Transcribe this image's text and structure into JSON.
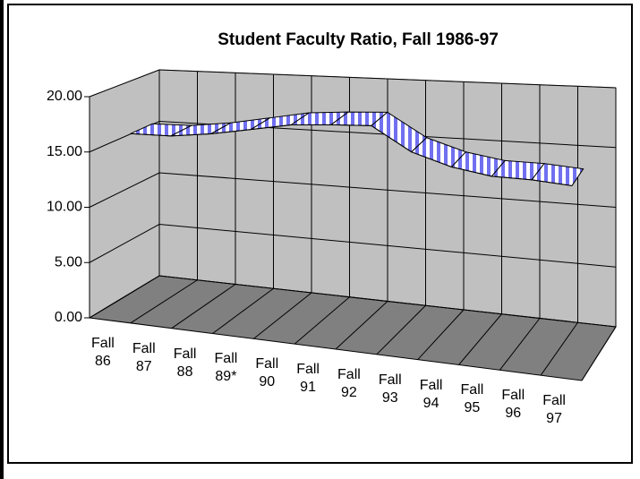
{
  "chart_data": {
    "type": "line3d",
    "title": "Student Faculty Ratio, Fall 1986-97",
    "categories": [
      "Fall 86",
      "Fall 87",
      "Fall 88",
      "Fall 89*",
      "Fall 90",
      "Fall 91",
      "Fall 92",
      "Fall 93",
      "Fall 94",
      "Fall 95",
      "Fall 96",
      "Fall 97"
    ],
    "series": [
      {
        "name": "Student Faculty Ratio",
        "color": "#7070f0",
        "values": [
          16.0,
          16.1,
          16.6,
          17.3,
          18.0,
          18.3,
          18.5,
          16.5,
          15.5,
          15.0,
          15.0,
          14.8
        ]
      }
    ],
    "ylim": [
      0,
      20
    ],
    "yticks": [
      {
        "value": 0,
        "label": "0.00"
      },
      {
        "value": 5,
        "label": "5.00"
      },
      {
        "value": 10,
        "label": "10.00"
      },
      {
        "value": 15,
        "label": "15.00"
      },
      {
        "value": 20,
        "label": "20.00"
      }
    ],
    "grid": true
  }
}
